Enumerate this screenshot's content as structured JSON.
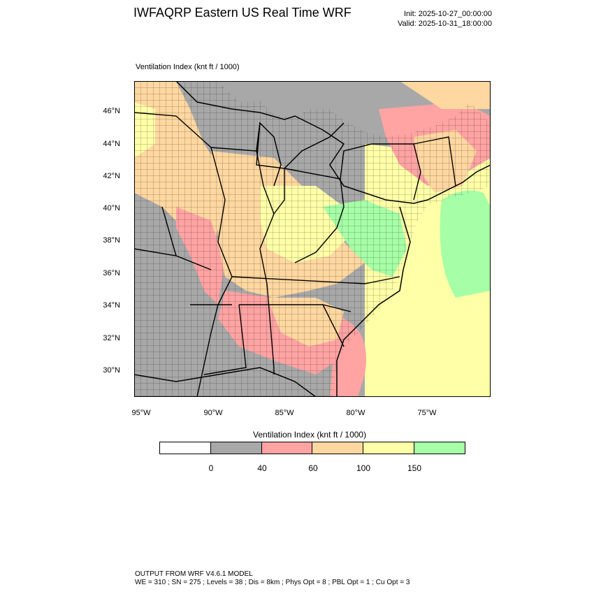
{
  "header": {
    "title": "IWFAQRP Eastern US Real Time WRF",
    "init": "Init: 2025-10-27_00:00:00",
    "valid": "Valid: 2025-10-31_18:00:00"
  },
  "map": {
    "subtitle": "Ventilation Index   (knt ft / 1000)",
    "lat_labels": [
      "46°N",
      "44°N",
      "42°N",
      "40°N",
      "38°N",
      "36°N",
      "34°N",
      "32°N",
      "30°N"
    ],
    "lon_labels": [
      "95°W",
      "90°W",
      "85°W",
      "80°W",
      "75°W"
    ],
    "colors": {
      "gray": "#a8a8a8",
      "red": "#ffa3a3",
      "orange": "#ffd7a0",
      "yellow": "#ffffa8",
      "green": "#a6ffa6",
      "outline": "#000000"
    }
  },
  "colorbar": {
    "title": "Ventilation Index  (knt ft / 1000)",
    "colors": [
      "#ffffff",
      "#a8a8a8",
      "#ffa3a3",
      "#ffd7a0",
      "#ffffa8",
      "#a6ffa6"
    ],
    "labels": [
      "0",
      "40",
      "60",
      "100",
      "150"
    ]
  },
  "footer": {
    "line1": "OUTPUT FROM WRF V4.6.1 MODEL",
    "line2": "WE = 310 ; SN = 275 ; Levels = 38 ; Dis = 8km ; Phys Opt = 8 ; PBL Opt = 1 ; Cu Opt = 3"
  }
}
